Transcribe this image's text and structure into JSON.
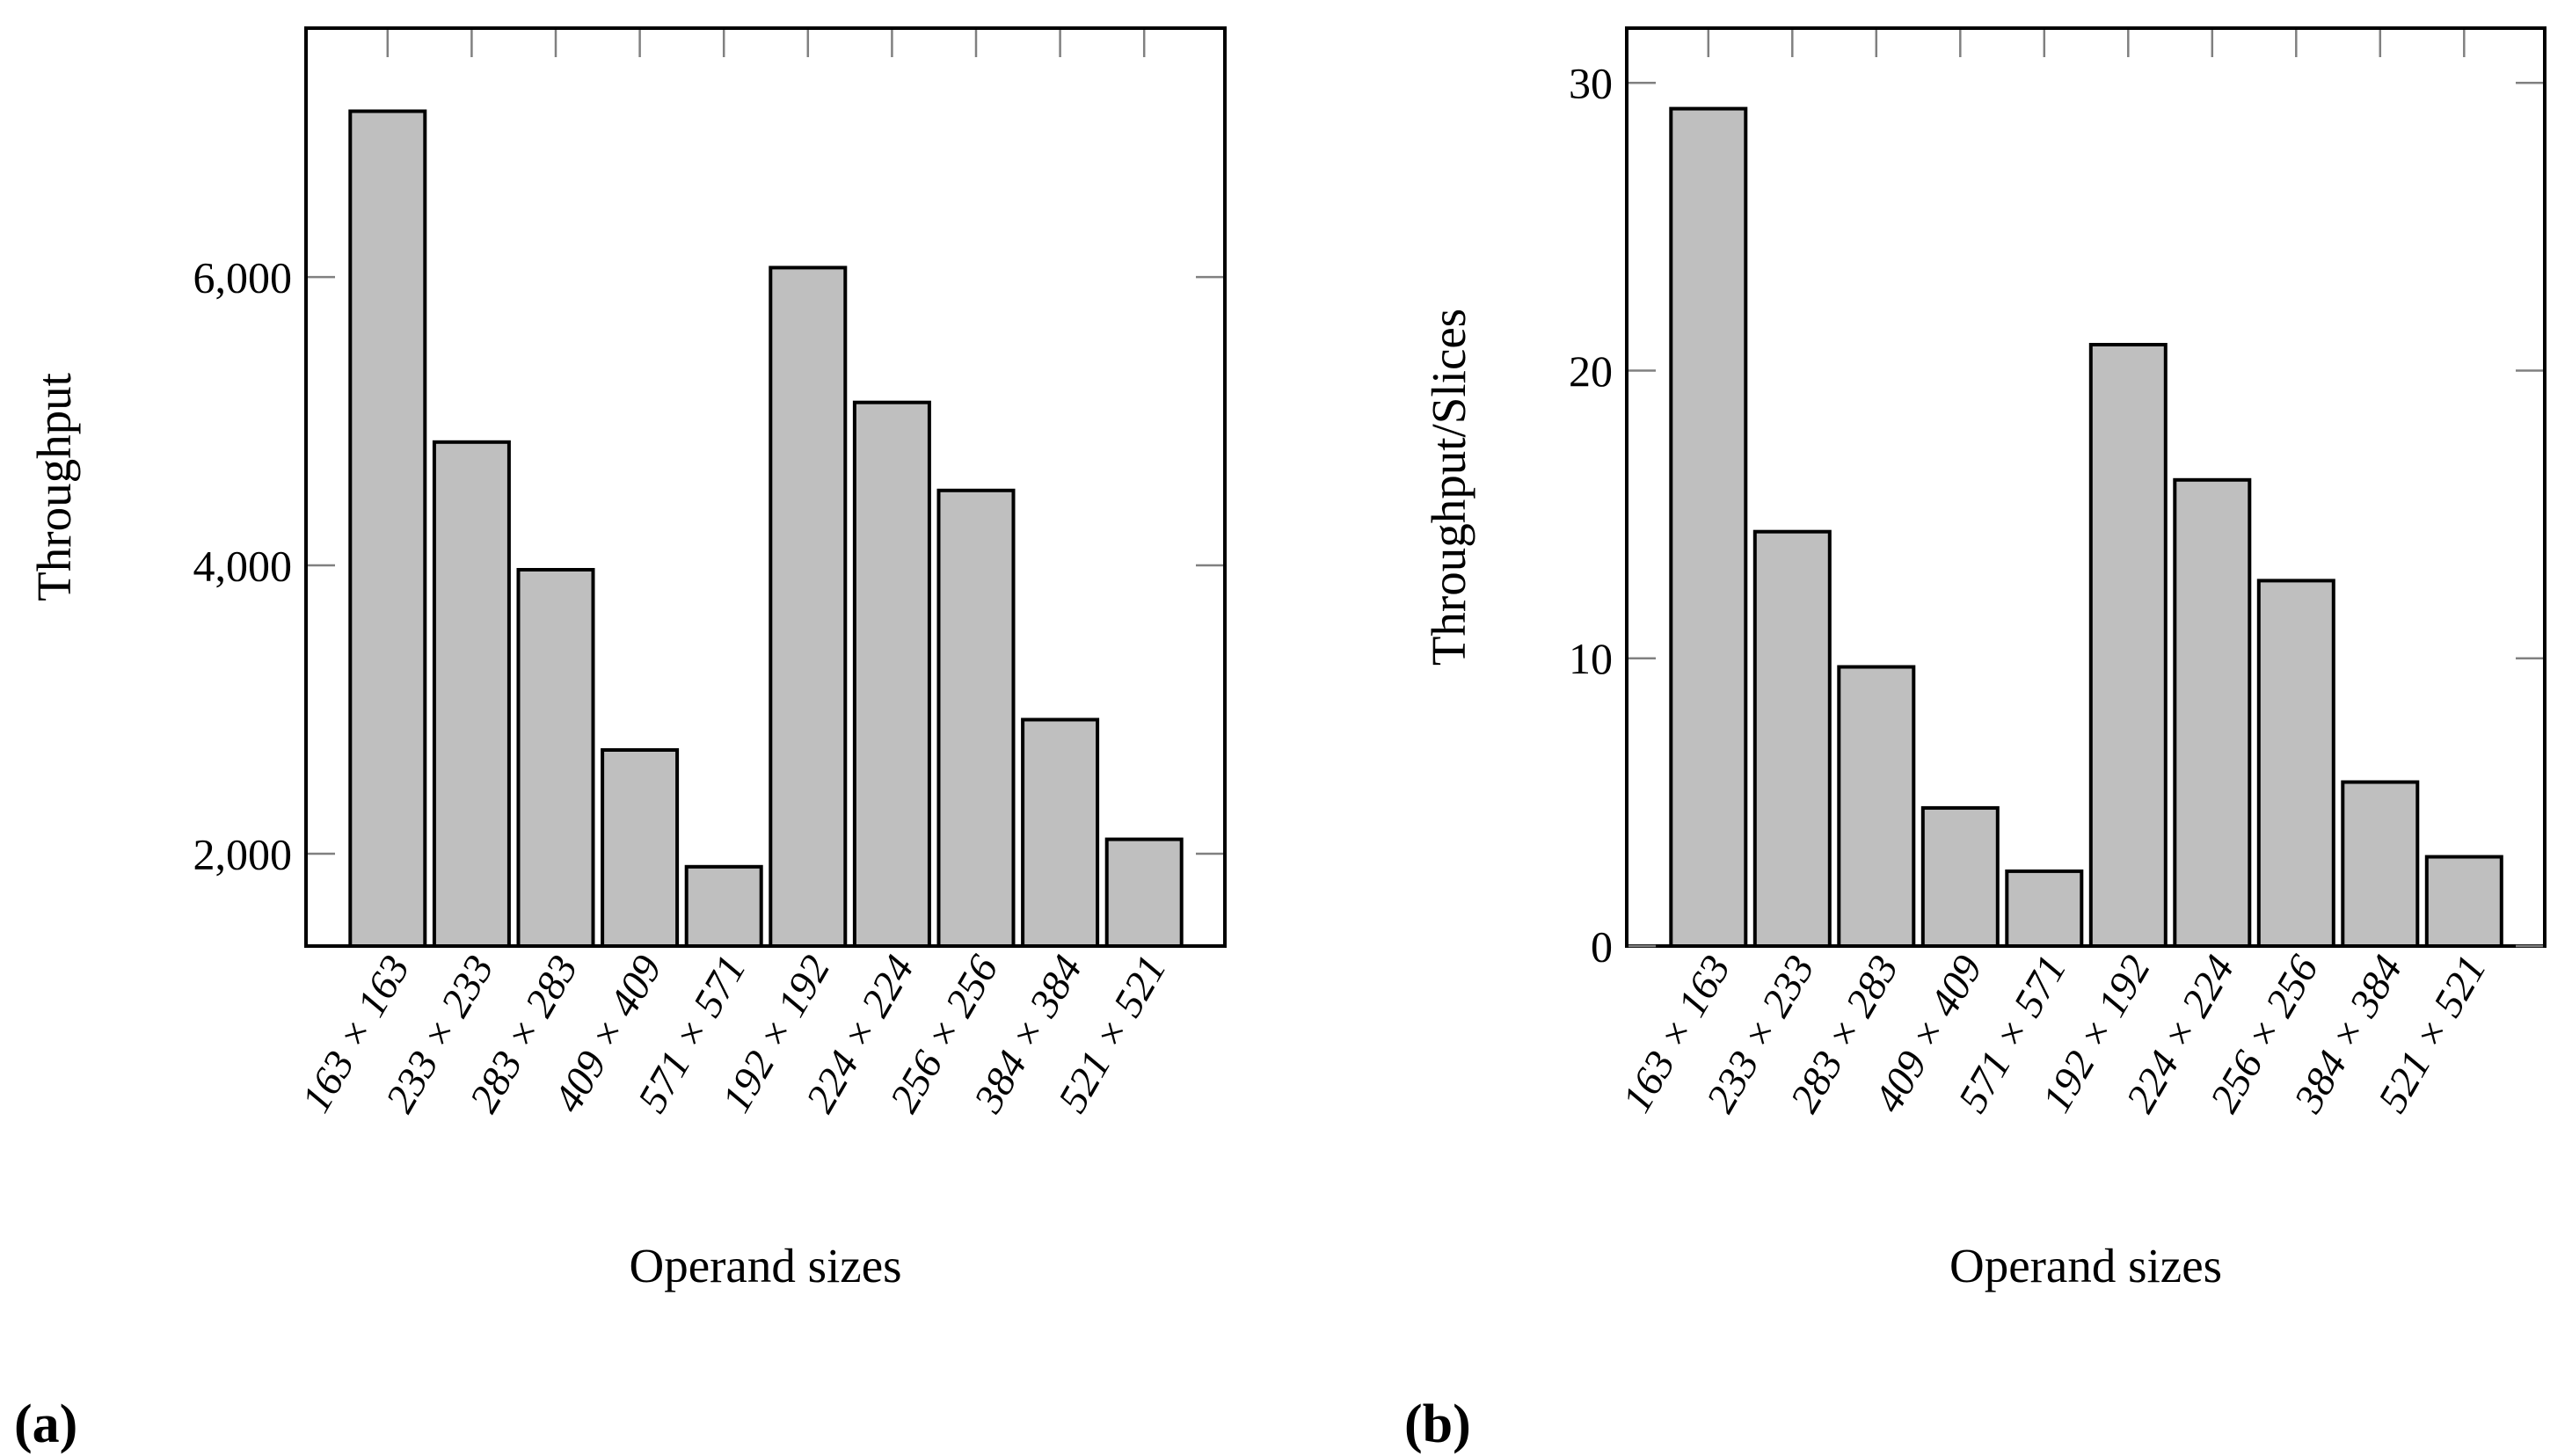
{
  "figure": {
    "captions": {
      "a": "(a)",
      "b": "(b)"
    }
  },
  "colors": {
    "background": "#ffffff",
    "bar_fill": "#bfbfbf",
    "bar_stroke": "#000000",
    "axis": "#000000",
    "tick": "#808080"
  },
  "chart_data": [
    {
      "type": "bar",
      "panel": "a",
      "title": "",
      "xlabel": "Operand sizes",
      "ylabel": "Throughput",
      "categories": [
        "163 × 163",
        "233 × 233",
        "283 × 283",
        "409 × 409",
        "571 × 571",
        "192 × 192",
        "224 × 224",
        "256 × 256",
        "384 × 384",
        "521 × 521"
      ],
      "values": [
        7150,
        4855,
        3970,
        2720,
        1910,
        6065,
        5130,
        4520,
        2930,
        2100
      ],
      "ylim": [
        1360,
        7726
      ],
      "yticks": [
        {
          "value": 2000,
          "label": "2,000"
        },
        {
          "value": 4000,
          "label": "4,000"
        },
        {
          "value": 6000,
          "label": "6,000"
        }
      ],
      "grid": false,
      "legend": null
    },
    {
      "type": "bar",
      "panel": "b",
      "title": "",
      "xlabel": "Operand sizes",
      "ylabel": "Throughput/Slices",
      "categories": [
        "163 × 163",
        "233 × 233",
        "283 × 283",
        "409 × 409",
        "571 × 571",
        "192 × 192",
        "224 × 224",
        "256 × 256",
        "384 × 384",
        "521 × 521"
      ],
      "values": [
        29.1,
        14.4,
        9.7,
        4.8,
        2.6,
        20.9,
        16.2,
        12.7,
        5.7,
        3.1
      ],
      "ylim": [
        0,
        31.9
      ],
      "yticks": [
        {
          "value": 0,
          "label": "0"
        },
        {
          "value": 10,
          "label": "10"
        },
        {
          "value": 20,
          "label": "20"
        },
        {
          "value": 30,
          "label": "30"
        }
      ],
      "grid": false,
      "legend": null
    }
  ]
}
